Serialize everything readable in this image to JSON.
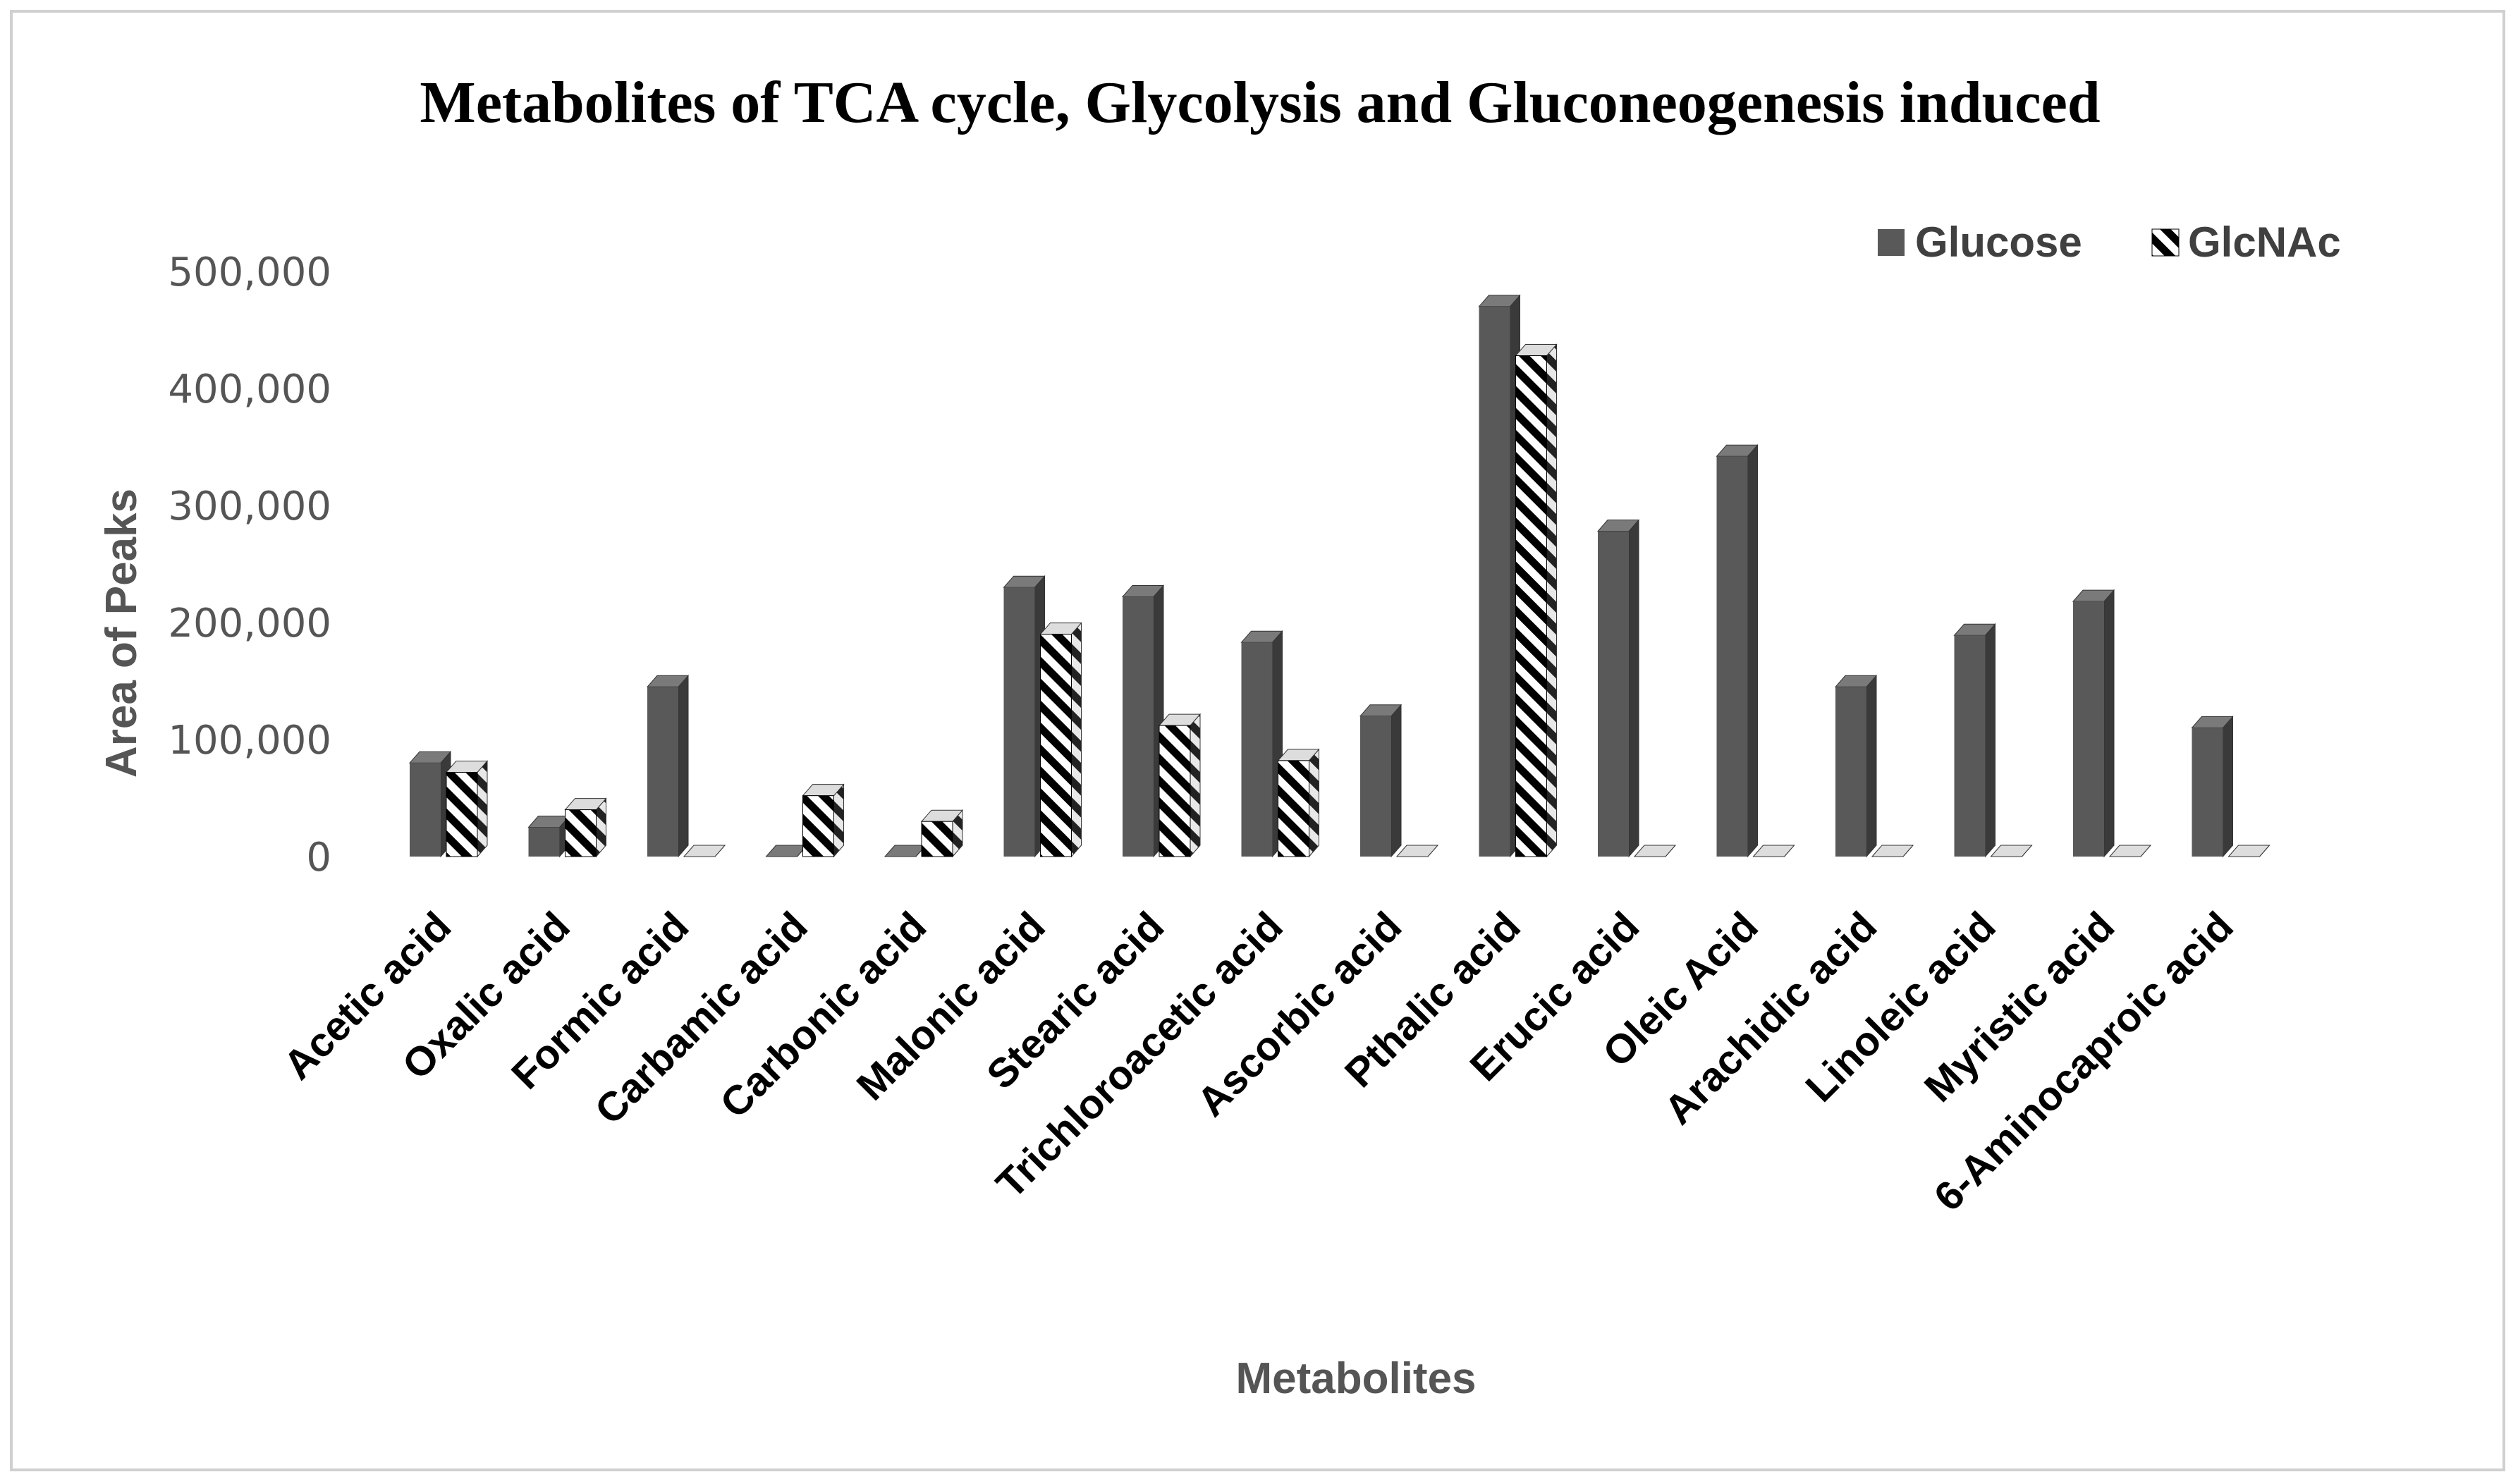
{
  "chart_data": {
    "type": "bar",
    "title": "Metabolites of TCA cycle, Glycolysis and Gluconeogenesis induced",
    "xlabel": "Metabolites",
    "ylabel": "Area of Peaks",
    "ylim": [
      0,
      500000
    ],
    "yticks": [
      0,
      100000,
      200000,
      300000,
      400000,
      500000
    ],
    "ytick_labels": [
      "0",
      "100,000",
      "200,000",
      "300,000",
      "400,000",
      "500,000"
    ],
    "grid": false,
    "legend_position": "top-right",
    "categories": [
      "Acetic acid",
      "Oxalic acid",
      "Formic acid",
      "Carbamic acid",
      "Carbonic acid",
      "Malonic acid",
      "Stearic acid",
      "Trichloroacetic acid",
      "Ascorbic acid",
      "Pthalic acid",
      "Erucic acid",
      "Oleic Acid",
      "Arachidic acid",
      "Linoleic acid",
      "Myristic acid",
      "6-Aminocaproic acid"
    ],
    "series": [
      {
        "name": "Glucose",
        "pattern": "solid",
        "color": "#595959",
        "values": [
          80000,
          25000,
          145000,
          0,
          0,
          230000,
          222000,
          183000,
          120000,
          470000,
          278000,
          342000,
          145000,
          189000,
          218000,
          110000
        ]
      },
      {
        "name": "GlcNAc",
        "pattern": "diagonal-stripes",
        "color": "#000000",
        "values": [
          72000,
          40000,
          0,
          52000,
          30000,
          190000,
          112000,
          82000,
          0,
          428000,
          0,
          0,
          0,
          0,
          0,
          0
        ]
      }
    ]
  }
}
